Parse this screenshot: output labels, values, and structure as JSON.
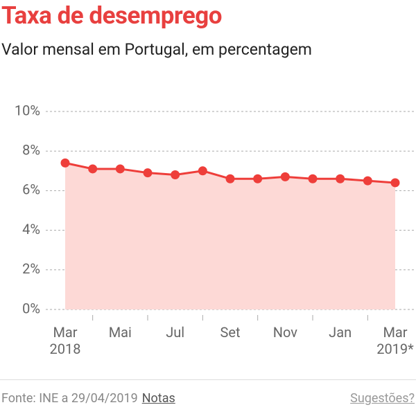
{
  "chart_data": {
    "type": "line",
    "title": "Taxa de desemprego",
    "subtitle": "Valor mensal em Portugal, em percentagem",
    "categories": [
      "Mar 2018",
      null,
      "Mai",
      null,
      "Jul",
      null,
      "Set",
      null,
      "Nov",
      null,
      "Jan",
      null,
      "Mar 2019*"
    ],
    "series": [
      {
        "color": "#ee3e3a",
        "fill": "#fdd9d6",
        "values": [
          7.4,
          7.1,
          7.1,
          6.9,
          6.8,
          7.0,
          6.6,
          6.6,
          6.7,
          6.6,
          6.6,
          6.5,
          6.4
        ]
      }
    ],
    "ylim": [
      0,
      10
    ],
    "yticks": [
      {
        "value": 0,
        "label": "0%"
      },
      {
        "value": 2,
        "label": "2%"
      },
      {
        "value": 4,
        "label": "4%"
      },
      {
        "value": 6,
        "label": "6%"
      },
      {
        "value": 8,
        "label": "8%"
      },
      {
        "value": 10,
        "label": "10%"
      }
    ],
    "grid": true
  },
  "footer": {
    "source": "Fonte: INE a 29/04/2019",
    "notes": "Notas",
    "suggestions": "Sugestões?"
  }
}
